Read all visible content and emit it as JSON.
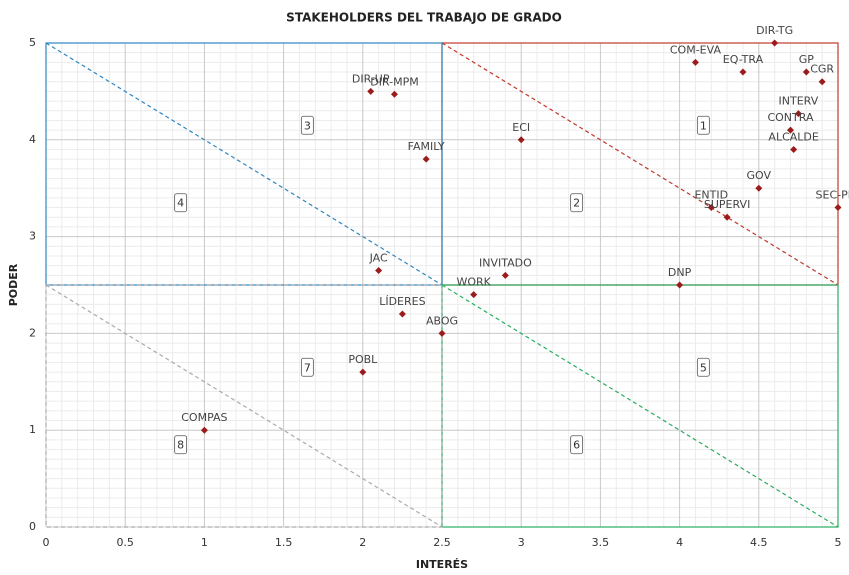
{
  "chart_data": {
    "type": "scatter",
    "title": "STAKEHOLDERS DEL TRABAJO DE GRADO",
    "x_label": "INTERÉS",
    "y_label": "PODER",
    "xlim": [
      0,
      5
    ],
    "ylim": [
      0,
      5
    ],
    "xticks": [
      0,
      0.5,
      1,
      1.5,
      2,
      2.5,
      3,
      3.5,
      4,
      4.5,
      5
    ],
    "yticks": [
      0,
      1,
      2,
      3,
      4,
      5
    ],
    "grid": true,
    "color": "#9b1c1c",
    "points": [
      {
        "name": "DIR-TG",
        "x": 4.6,
        "y": 5.0
      },
      {
        "name": "COM-EVA",
        "x": 4.1,
        "y": 4.8
      },
      {
        "name": "EQ-TRA",
        "x": 4.4,
        "y": 4.7
      },
      {
        "name": "GP",
        "x": 4.8,
        "y": 4.7
      },
      {
        "name": "CGR",
        "x": 4.9,
        "y": 4.6
      },
      {
        "name": "INTERV",
        "x": 4.75,
        "y": 4.27
      },
      {
        "name": "CONTRA",
        "x": 4.7,
        "y": 4.1
      },
      {
        "name": "ALCALDE",
        "x": 4.72,
        "y": 3.9
      },
      {
        "name": "GOV",
        "x": 4.5,
        "y": 3.5
      },
      {
        "name": "ENTID",
        "x": 4.2,
        "y": 3.3
      },
      {
        "name": "SUPERVI",
        "x": 4.3,
        "y": 3.2
      },
      {
        "name": "SEC-PIM",
        "x": 5.0,
        "y": 3.3
      },
      {
        "name": "DNP",
        "x": 4.0,
        "y": 2.5
      },
      {
        "name": "ECI",
        "x": 3.0,
        "y": 4.0
      },
      {
        "name": "DIR-UP",
        "x": 2.05,
        "y": 4.5
      },
      {
        "name": "DIR-MPM",
        "x": 2.2,
        "y": 4.47
      },
      {
        "name": "FAMILY",
        "x": 2.4,
        "y": 3.8
      },
      {
        "name": "JAC",
        "x": 2.1,
        "y": 2.65
      },
      {
        "name": "INVITADO",
        "x": 2.9,
        "y": 2.6
      },
      {
        "name": "WORK",
        "x": 2.7,
        "y": 2.4
      },
      {
        "name": "LÍDERES",
        "x": 2.25,
        "y": 2.2
      },
      {
        "name": "ABOG",
        "x": 2.5,
        "y": 2.0
      },
      {
        "name": "POBL",
        "x": 2.0,
        "y": 1.6
      },
      {
        "name": "COMPAS",
        "x": 1.0,
        "y": 1.0
      }
    ],
    "regions": [
      {
        "color": "#c0392b",
        "x": [
          2.5,
          5
        ],
        "y": [
          2.5,
          5
        ],
        "diagonal": [
          [
            2.5,
            5
          ],
          [
            5,
            2.5
          ]
        ],
        "label": "1",
        "label_x": 4.15,
        "label_y": 4.15
      },
      {
        "color": "#c0392b",
        "x": [
          2.5,
          5
        ],
        "y": [
          2.5,
          5
        ],
        "diagonal": null,
        "label": "2",
        "label_x": 3.35,
        "label_y": 3.35
      },
      {
        "color": "#2e86c1",
        "x": [
          0,
          2.5
        ],
        "y": [
          2.5,
          5
        ],
        "diagonal": [
          [
            0,
            5
          ],
          [
            2.5,
            2.5
          ]
        ],
        "label": "3",
        "label_x": 1.65,
        "label_y": 4.15
      },
      {
        "color": "#2e86c1",
        "x": [
          0,
          2.5
        ],
        "y": [
          2.5,
          5
        ],
        "diagonal": null,
        "label": "4",
        "label_x": 0.85,
        "label_y": 3.35
      },
      {
        "color": "#27ae60",
        "x": [
          2.5,
          5
        ],
        "y": [
          0,
          2.5
        ],
        "diagonal": [
          [
            2.5,
            2.5
          ],
          [
            5,
            0
          ]
        ],
        "label": "5",
        "label_x": 4.15,
        "label_y": 1.65
      },
      {
        "color": "#27ae60",
        "x": [
          2.5,
          5
        ],
        "y": [
          0,
          2.5
        ],
        "diagonal": null,
        "label": "6",
        "label_x": 3.35,
        "label_y": 0.85
      },
      {
        "color": "#aaaaaa",
        "x": [
          0,
          2.5
        ],
        "y": [
          0,
          2.5
        ],
        "diagonal": [
          [
            0,
            2.5
          ],
          [
            2.5,
            0
          ]
        ],
        "label": "7",
        "label_x": 1.65,
        "label_y": 1.65
      },
      {
        "color": "#aaaaaa",
        "x": [
          0,
          2.5
        ],
        "y": [
          0,
          2.5
        ],
        "diagonal": null,
        "label": "8",
        "label_x": 0.85,
        "label_y": 0.85
      }
    ]
  }
}
